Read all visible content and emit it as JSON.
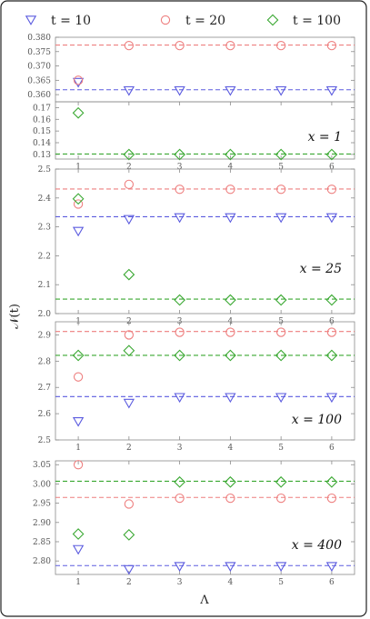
{
  "legend": [
    {
      "label": "t = 10",
      "marker": "triangle-down",
      "color": "#5b5bdf"
    },
    {
      "label": "t = 20",
      "marker": "circle",
      "color": "#ee7f7f"
    },
    {
      "label": "t = 100",
      "marker": "diamond",
      "color": "#3aa832"
    }
  ],
  "ylabel": "𝒩(t)",
  "xlabel": "Λ",
  "chart_data": [
    {
      "type": "scatter",
      "label": "x = 1",
      "broken_axis": true,
      "x": [
        1,
        2,
        3,
        4,
        5,
        6
      ],
      "xlim": [
        0.55,
        6.45
      ],
      "upper_ylim": [
        0.3575,
        0.38
      ],
      "upper_yticks": [
        0.36,
        0.365,
        0.37,
        0.375,
        0.38
      ],
      "upper_tick_labels": [
        "0.360",
        "0.365",
        "0.370",
        "0.375",
        "0.380"
      ],
      "lower_ylim": [
        0.126,
        0.175
      ],
      "lower_yticks": [
        0.13,
        0.14,
        0.15,
        0.16,
        0.17
      ],
      "lower_tick_labels": [
        "0.13",
        "0.14",
        "0.15",
        "0.16",
        "0.17"
      ],
      "series": [
        {
          "values": [
            0.3643,
            0.3614,
            0.3614,
            0.3614,
            0.3614,
            0.3614
          ],
          "reference": 0.3617,
          "axis": "upper"
        },
        {
          "values": [
            0.365,
            0.3771,
            0.3771,
            0.3771,
            0.3771,
            0.3771
          ],
          "reference": 0.3773,
          "axis": "upper"
        },
        {
          "values": [
            0.1655,
            0.1299,
            0.1299,
            0.1299,
            0.1299,
            0.1299
          ],
          "reference": 0.1303,
          "axis": "lower"
        }
      ]
    },
    {
      "type": "scatter",
      "label": "x = 25",
      "x": [
        1,
        2,
        3,
        4,
        5,
        6
      ],
      "xlim": [
        0.55,
        6.45
      ],
      "ylim": [
        2.0,
        2.5
      ],
      "yticks": [
        2.0,
        2.1,
        2.2,
        2.3,
        2.4,
        2.5
      ],
      "tick_labels": [
        "2.0",
        "2.1",
        "2.2",
        "2.3",
        "2.4",
        "2.5"
      ],
      "series": [
        {
          "values": [
            2.285,
            2.326,
            2.332,
            2.332,
            2.332,
            2.332
          ],
          "reference": 2.335
        },
        {
          "values": [
            2.379,
            2.447,
            2.43,
            2.43,
            2.43,
            2.43
          ],
          "reference": 2.431
        },
        {
          "values": [
            2.397,
            2.135,
            2.047,
            2.047,
            2.047,
            2.047
          ],
          "reference": 2.05
        }
      ]
    },
    {
      "type": "scatter",
      "label": "x = 100",
      "x": [
        1,
        2,
        3,
        4,
        5,
        6
      ],
      "xlim": [
        0.55,
        6.45
      ],
      "ylim": [
        2.5,
        2.95
      ],
      "yticks": [
        2.5,
        2.6,
        2.7,
        2.8,
        2.9
      ],
      "tick_labels": [
        "2.5",
        "2.6",
        "2.7",
        "2.8",
        "2.9"
      ],
      "series": [
        {
          "values": [
            2.57,
            2.64,
            2.662,
            2.662,
            2.662,
            2.662
          ],
          "reference": 2.665
        },
        {
          "values": [
            2.74,
            2.9,
            2.91,
            2.91,
            2.91,
            2.91
          ],
          "reference": 2.913
        },
        {
          "values": [
            2.822,
            2.84,
            2.822,
            2.822,
            2.822,
            2.822
          ],
          "reference": 2.822
        }
      ]
    },
    {
      "type": "scatter",
      "label": "x = 400",
      "x": [
        1,
        2,
        3,
        4,
        5,
        6
      ],
      "xlim": [
        0.55,
        6.45
      ],
      "ylim": [
        2.765,
        3.06
      ],
      "yticks": [
        2.8,
        2.85,
        2.9,
        2.95,
        3.0,
        3.05
      ],
      "tick_labels": [
        "2.80",
        "2.85",
        "2.90",
        "2.95",
        "3.00",
        "3.05"
      ],
      "xtick_labels": [
        "1",
        "2",
        "3",
        "4",
        "5",
        "6"
      ],
      "series": [
        {
          "values": [
            2.83,
            2.778,
            2.786,
            2.786,
            2.786,
            2.786
          ],
          "reference": 2.788
        },
        {
          "values": [
            3.05,
            2.948,
            2.963,
            2.963,
            2.963,
            2.963
          ],
          "reference": 2.965
        },
        {
          "values": [
            2.87,
            2.868,
            3.005,
            3.005,
            3.005,
            3.005
          ],
          "reference": 3.007
        }
      ]
    }
  ]
}
